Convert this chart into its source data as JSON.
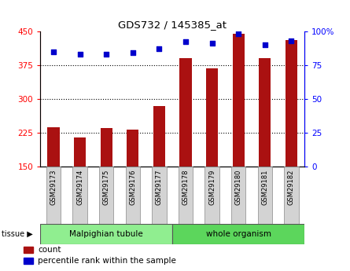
{
  "title": "GDS732 / 145385_at",
  "samples": [
    "GSM29173",
    "GSM29174",
    "GSM29175",
    "GSM29176",
    "GSM29177",
    "GSM29178",
    "GSM29179",
    "GSM29180",
    "GSM29181",
    "GSM29182"
  ],
  "counts": [
    238,
    215,
    235,
    232,
    285,
    390,
    368,
    445,
    390,
    430
  ],
  "percentiles": [
    85,
    83,
    83,
    84,
    87,
    92,
    91,
    98,
    90,
    93
  ],
  "groups": [
    {
      "label": "Malpighian tubule",
      "start": 0,
      "end": 5,
      "color": "#90EE90"
    },
    {
      "label": "whole organism",
      "start": 5,
      "end": 10,
      "color": "#5CD65C"
    }
  ],
  "ylim_left": [
    150,
    450
  ],
  "ylim_right": [
    0,
    100
  ],
  "yticks_left": [
    150,
    225,
    300,
    375,
    450
  ],
  "yticks_right": [
    0,
    25,
    50,
    75,
    100
  ],
  "grid_values": [
    225,
    300,
    375
  ],
  "bar_color": "#AA1111",
  "dot_color": "#0000CC",
  "bar_width": 0.45,
  "bg_color": "#FFFFFF",
  "plot_bg": "#FFFFFF",
  "label_bg": "#D3D3D3",
  "legend_items": [
    {
      "label": "count",
      "color": "#AA1111"
    },
    {
      "label": "percentile rank within the sample",
      "color": "#0000CC"
    }
  ],
  "figsize": [
    4.45,
    3.45
  ],
  "dpi": 100
}
